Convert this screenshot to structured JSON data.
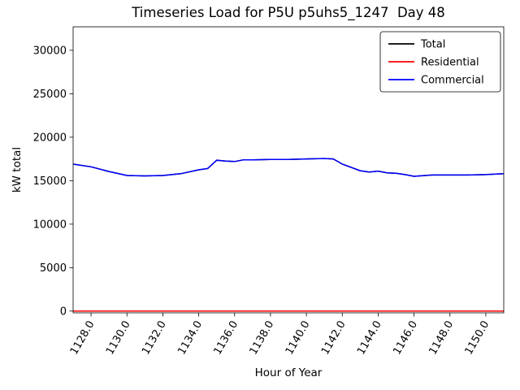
{
  "chart_data": {
    "type": "line",
    "title": "Timeseries Load for P5U p5uhs5_1247  Day 48",
    "xlabel": "Hour of Year",
    "ylabel": "kW total",
    "grid": false,
    "legend_position": "upper right",
    "xlim": [
      1127,
      1151
    ],
    "ylim": [
      -200,
      32700
    ],
    "x_ticks": [
      1128,
      1130,
      1132,
      1134,
      1136,
      1138,
      1140,
      1142,
      1144,
      1146,
      1148,
      1150
    ],
    "x_tick_labels": [
      "1128.0",
      "1130.0",
      "1132.0",
      "1134.0",
      "1136.0",
      "1138.0",
      "1140.0",
      "1142.0",
      "1144.0",
      "1146.0",
      "1148.0",
      "1150.0"
    ],
    "y_ticks": [
      0,
      5000,
      10000,
      15000,
      20000,
      25000,
      30000
    ],
    "x": [
      1127,
      1128,
      1129,
      1130,
      1131,
      1132,
      1133,
      1134,
      1134.5,
      1135,
      1135.5,
      1136,
      1136.5,
      1137,
      1138,
      1139,
      1140,
      1141,
      1141.5,
      1142,
      1143,
      1143.5,
      1144,
      1144.5,
      1145,
      1145.5,
      1146,
      1147,
      1148,
      1149,
      1150,
      1151
    ],
    "series": [
      {
        "name": "Total",
        "color": "#000000",
        "values": [
          16900,
          16600,
          16050,
          15600,
          15550,
          15600,
          15800,
          16250,
          16400,
          17350,
          17250,
          17200,
          17400,
          17400,
          17450,
          17450,
          17500,
          17550,
          17500,
          16900,
          16150,
          16000,
          16100,
          15900,
          15850,
          15700,
          15500,
          15650,
          15650,
          15650,
          15700,
          15800
        ]
      },
      {
        "name": "Residential",
        "color": "#ff0000",
        "values": [
          0,
          0,
          0,
          0,
          0,
          0,
          0,
          0,
          0,
          0,
          0,
          0,
          0,
          0,
          0,
          0,
          0,
          0,
          0,
          0,
          0,
          0,
          0,
          0,
          0,
          0,
          0,
          0,
          0,
          0,
          0,
          0
        ]
      },
      {
        "name": "Commercial",
        "color": "#0000ff",
        "values": [
          16900,
          16600,
          16050,
          15600,
          15550,
          15600,
          15800,
          16250,
          16400,
          17350,
          17250,
          17200,
          17400,
          17400,
          17450,
          17450,
          17500,
          17550,
          17500,
          16900,
          16150,
          16000,
          16100,
          15900,
          15850,
          15700,
          15500,
          15650,
          15650,
          15650,
          15700,
          15800
        ]
      }
    ]
  }
}
